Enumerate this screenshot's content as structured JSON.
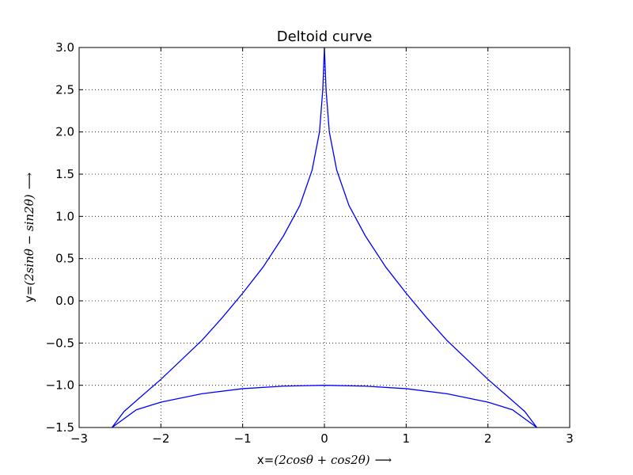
{
  "chart_data": {
    "type": "line",
    "title": "Deltoid curve",
    "xlabel_prefix": "x=",
    "xlabel_math": "(2cosθ + cos2θ)",
    "ylabel_prefix": "y=",
    "ylabel_math": "(2sinθ − sin2θ)",
    "arrow": "⟶",
    "xlim": [
      -3,
      3
    ],
    "ylim": [
      -1.5,
      3.0
    ],
    "xticks": [
      -3,
      -2,
      -1,
      0,
      1,
      2,
      3
    ],
    "xtick_labels": [
      "−3",
      "−2",
      "−1",
      "0",
      "1",
      "2",
      "3"
    ],
    "yticks": [
      -1.5,
      -1.0,
      -0.5,
      0.0,
      0.5,
      1.0,
      1.5,
      2.0,
      2.5,
      3.0
    ],
    "ytick_labels": [
      "−1.5",
      "−1.0",
      "−0.5",
      "0.0",
      "0.5",
      "1.0",
      "1.5",
      "2.0",
      "2.5",
      "3.0"
    ],
    "grid": true,
    "grid_style": "dotted",
    "series": [
      {
        "color": "#0000ff",
        "x": [
          2.598,
          2.45,
          2.25,
          2.0,
          1.75,
          1.5,
          1.25,
          1.0,
          0.75,
          0.5,
          0.3,
          0.15,
          0.06,
          0.02,
          0.0,
          -0.02,
          -0.06,
          -0.15,
          -0.3,
          -0.5,
          -0.75,
          -1.0,
          -1.25,
          -1.5,
          -1.75,
          -2.0,
          -2.25,
          -2.45,
          -2.598,
          -2.3,
          -2.0,
          -1.5,
          -1.0,
          -0.5,
          0.0,
          0.5,
          1.0,
          1.5,
          2.0,
          2.3,
          2.598
        ],
        "y": [
          -1.5,
          -1.31,
          -1.14,
          -0.93,
          -0.7,
          -0.47,
          -0.2,
          0.09,
          0.4,
          0.77,
          1.13,
          1.55,
          2.0,
          2.5,
          3.0,
          2.5,
          2.0,
          1.55,
          1.13,
          0.77,
          0.4,
          0.09,
          -0.2,
          -0.47,
          -0.7,
          -0.93,
          -1.14,
          -1.31,
          -1.5,
          -1.29,
          -1.2,
          -1.1,
          -1.04,
          -1.01,
          -1.0,
          -1.01,
          -1.04,
          -1.1,
          -1.2,
          -1.29,
          -1.5
        ]
      }
    ]
  }
}
